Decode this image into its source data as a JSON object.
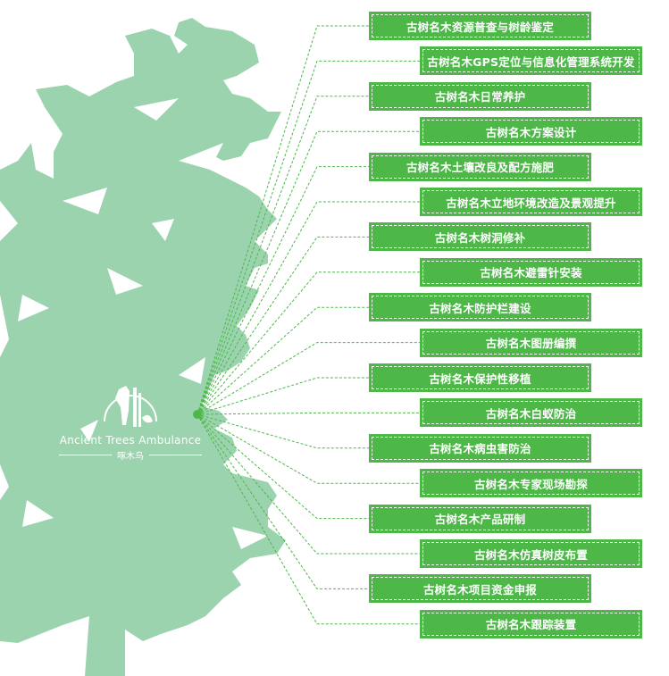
{
  "colors": {
    "accent": "#4db848",
    "tree": "#9bd3ae",
    "text_on_accent": "#ffffff"
  },
  "logo": {
    "icon": "woodpecker-on-tree-icon",
    "name_en": "Ancient Trees Ambulance",
    "name_cn": "啄木鸟"
  },
  "services": [
    "古树名木资源普查与树龄鉴定",
    "古树名木GPS定位与信息化管理系统开发",
    "古树名木日常养护",
    "古树名木方案设计",
    "古树名木土壤改良及配方施肥",
    "古树名木立地环境改造及景观提升",
    "古树名木树洞修补",
    "古树名木避雷针安装",
    "古树名木防护栏建设",
    "古树名木图册编撰",
    "古树名木保护性移植",
    "古树名木白蚁防治",
    "古树名木病虫害防治",
    "古树名木专家现场勘探",
    "古树名木产品研制",
    "古树名木仿真树皮布置",
    "古树名木项目资金申报",
    "古树名木跟踪装置"
  ]
}
